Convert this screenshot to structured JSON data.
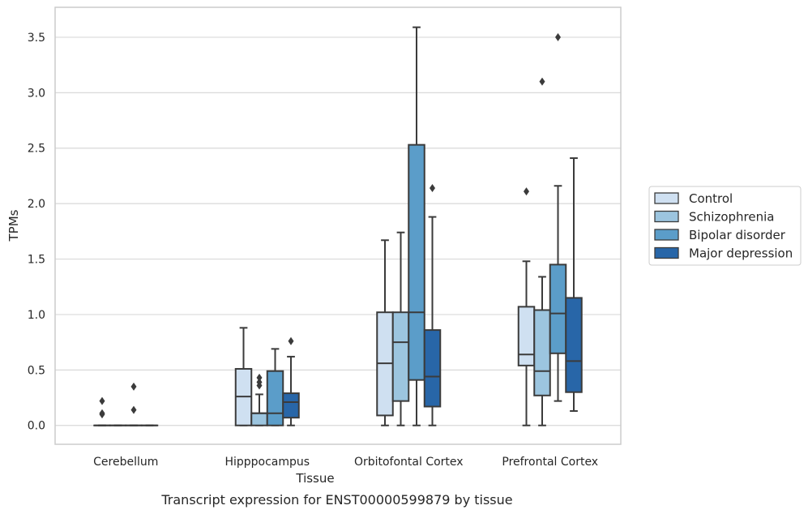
{
  "caption": "Transcript expression for ENST00000599879 by tissue",
  "chart_data": {
    "type": "box",
    "title": "",
    "xlabel": "Tissue",
    "ylabel": "TPMs",
    "ylim": [
      -0.17,
      3.77
    ],
    "yticks": [
      0.0,
      0.5,
      1.0,
      1.5,
      2.0,
      2.5,
      3.0,
      3.5
    ],
    "ytick_labels": [
      "0.0",
      "0.5",
      "1.0",
      "1.5",
      "2.0",
      "2.5",
      "3.0",
      "3.5"
    ],
    "grid": true,
    "legend": "outside-right",
    "categories": [
      "Cerebellum",
      "Hipppocampus",
      "Orbitofontal Cortex",
      "Prefrontal Cortex"
    ],
    "series": [
      {
        "name": "Control",
        "color": "#cfe0f1",
        "boxes": [
          {
            "whislo": 0,
            "q1": 0,
            "med": 0,
            "q3": 0,
            "whishi": 0,
            "fliers": [
              0.1,
              0.11,
              0.22
            ]
          },
          {
            "whislo": 0,
            "q1": 0,
            "med": 0.26,
            "q3": 0.51,
            "whishi": 0.88,
            "fliers": []
          },
          {
            "whislo": 0,
            "q1": 0.09,
            "med": 0.56,
            "q3": 1.02,
            "whishi": 1.67,
            "fliers": []
          },
          {
            "whislo": 0,
            "q1": 0.54,
            "med": 0.64,
            "q3": 1.07,
            "whishi": 1.48,
            "fliers": [
              2.11
            ]
          }
        ]
      },
      {
        "name": "Schizophrenia",
        "color": "#9cc5df",
        "boxes": [
          {
            "whislo": 0,
            "q1": 0,
            "med": 0,
            "q3": 0,
            "whishi": 0,
            "fliers": []
          },
          {
            "whislo": 0,
            "q1": 0,
            "med": 0.11,
            "q3": 0.11,
            "whishi": 0.28,
            "fliers": [
              0.36,
              0.39,
              0.43
            ]
          },
          {
            "whislo": 0,
            "q1": 0.22,
            "med": 0.75,
            "q3": 1.02,
            "whishi": 1.74,
            "fliers": []
          },
          {
            "whislo": 0,
            "q1": 0.27,
            "med": 0.49,
            "q3": 1.04,
            "whishi": 1.34,
            "fliers": [
              3.1
            ]
          }
        ]
      },
      {
        "name": "Bipolar disorder",
        "color": "#5b9dc9",
        "boxes": [
          {
            "whislo": 0,
            "q1": 0,
            "med": 0,
            "q3": 0,
            "whishi": 0,
            "fliers": [
              0.14,
              0.35
            ]
          },
          {
            "whislo": 0,
            "q1": 0,
            "med": 0.11,
            "q3": 0.49,
            "whishi": 0.69,
            "fliers": []
          },
          {
            "whislo": 0,
            "q1": 0.41,
            "med": 1.02,
            "q3": 2.53,
            "whishi": 3.59,
            "fliers": []
          },
          {
            "whislo": 0.22,
            "q1": 0.65,
            "med": 1.01,
            "q3": 1.45,
            "whishi": 2.16,
            "fliers": [
              3.5
            ]
          }
        ]
      },
      {
        "name": "Major depression",
        "color": "#2866a8",
        "boxes": [
          {
            "whislo": 0,
            "q1": 0,
            "med": 0,
            "q3": 0,
            "whishi": 0,
            "fliers": []
          },
          {
            "whislo": 0,
            "q1": 0.07,
            "med": 0.21,
            "q3": 0.29,
            "whishi": 0.62,
            "fliers": [
              0.76
            ]
          },
          {
            "whislo": 0,
            "q1": 0.17,
            "med": 0.44,
            "q3": 0.86,
            "whishi": 1.88,
            "fliers": [
              2.14
            ]
          },
          {
            "whislo": 0.13,
            "q1": 0.3,
            "med": 0.58,
            "q3": 1.15,
            "whishi": 2.41,
            "fliers": []
          }
        ]
      }
    ]
  }
}
